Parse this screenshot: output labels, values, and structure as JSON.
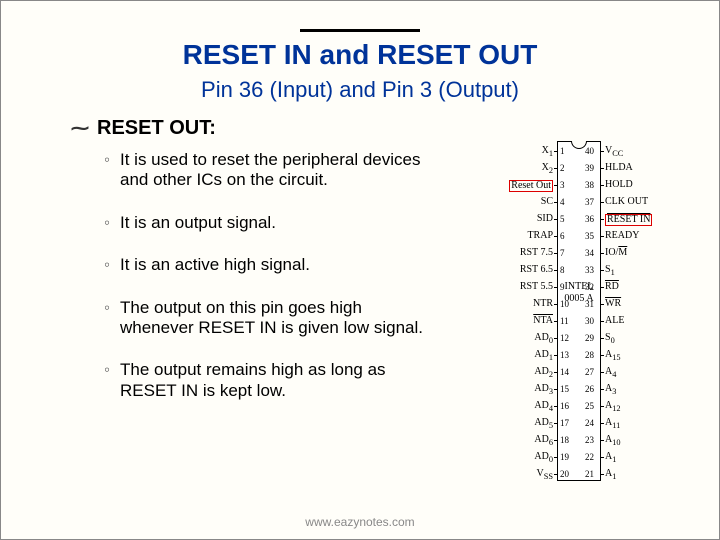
{
  "title": "RESET IN and RESET OUT",
  "subtitle": "Pin 36 (Input) and Pin 3 (Output)",
  "section_heading": "RESET OUT:",
  "bullets": [
    "It is used to reset the peripheral devices and other ICs on the circuit.",
    "It is an output signal.",
    "It is an active high signal.",
    "The output on this pin goes high whenever RESET IN is given low signal.",
    "The output remains high as long as RESET IN is kept low."
  ],
  "footer": "www.eazynotes.com",
  "chip": {
    "name_line1": "INTEL",
    "name_line2": "0005 A",
    "left_pins": [
      {
        "n": 1,
        "lbl": "X<sub>1</sub>"
      },
      {
        "n": 2,
        "lbl": "X<sub>2</sub>"
      },
      {
        "n": 3,
        "lbl": "Reset Out",
        "hl": true
      },
      {
        "n": 4,
        "lbl": "SC"
      },
      {
        "n": 5,
        "lbl": "SID"
      },
      {
        "n": 6,
        "lbl": "TRAP"
      },
      {
        "n": 7,
        "lbl": "RST 7.5"
      },
      {
        "n": 8,
        "lbl": "RST 6.5"
      },
      {
        "n": 9,
        "lbl": "RST 5.5"
      },
      {
        "n": 10,
        "lbl": "NTR"
      },
      {
        "n": 11,
        "lbl": "<span class='ov'>NTA</span>"
      },
      {
        "n": 12,
        "lbl": "AD<sub>0</sub>"
      },
      {
        "n": 13,
        "lbl": "AD<sub>1</sub>"
      },
      {
        "n": 14,
        "lbl": "AD<sub>2</sub>"
      },
      {
        "n": 15,
        "lbl": "AD<sub>3</sub>"
      },
      {
        "n": 16,
        "lbl": "AD<sub>4</sub>"
      },
      {
        "n": 17,
        "lbl": "AD<sub>5</sub>"
      },
      {
        "n": 18,
        "lbl": "AD<sub>6</sub>"
      },
      {
        "n": 19,
        "lbl": "AD<sub>0</sub>"
      },
      {
        "n": 20,
        "lbl": "V<sub>SS</sub>"
      }
    ],
    "right_pins": [
      {
        "n": 40,
        "lbl": "V<sub>CC</sub>"
      },
      {
        "n": 39,
        "lbl": "HLDA"
      },
      {
        "n": 38,
        "lbl": "HOLD"
      },
      {
        "n": 37,
        "lbl": "CLK OUT"
      },
      {
        "n": 36,
        "lbl": "<span class='ov'>RESET IN</span>",
        "hl": true
      },
      {
        "n": 35,
        "lbl": "READY"
      },
      {
        "n": 34,
        "lbl": "IO/<span class='ov'>M</span>"
      },
      {
        "n": 33,
        "lbl": "S<sub>1</sub>"
      },
      {
        "n": 32,
        "lbl": "<span class='ov'>RD</span>"
      },
      {
        "n": 31,
        "lbl": "<span class='ov'>WR</span>"
      },
      {
        "n": 30,
        "lbl": "ALE"
      },
      {
        "n": 29,
        "lbl": "S<sub>0</sub>"
      },
      {
        "n": 28,
        "lbl": "A<sub>15</sub>"
      },
      {
        "n": 27,
        "lbl": "A<sub>4</sub>"
      },
      {
        "n": 26,
        "lbl": "A<sub>3</sub>"
      },
      {
        "n": 25,
        "lbl": "A<sub>12</sub>"
      },
      {
        "n": 24,
        "lbl": "A<sub>11</sub>"
      },
      {
        "n": 23,
        "lbl": "A<sub>10</sub>"
      },
      {
        "n": 22,
        "lbl": "A<sub>1</sub>"
      },
      {
        "n": 21,
        "lbl": "A<sub>1</sub>"
      }
    ]
  }
}
